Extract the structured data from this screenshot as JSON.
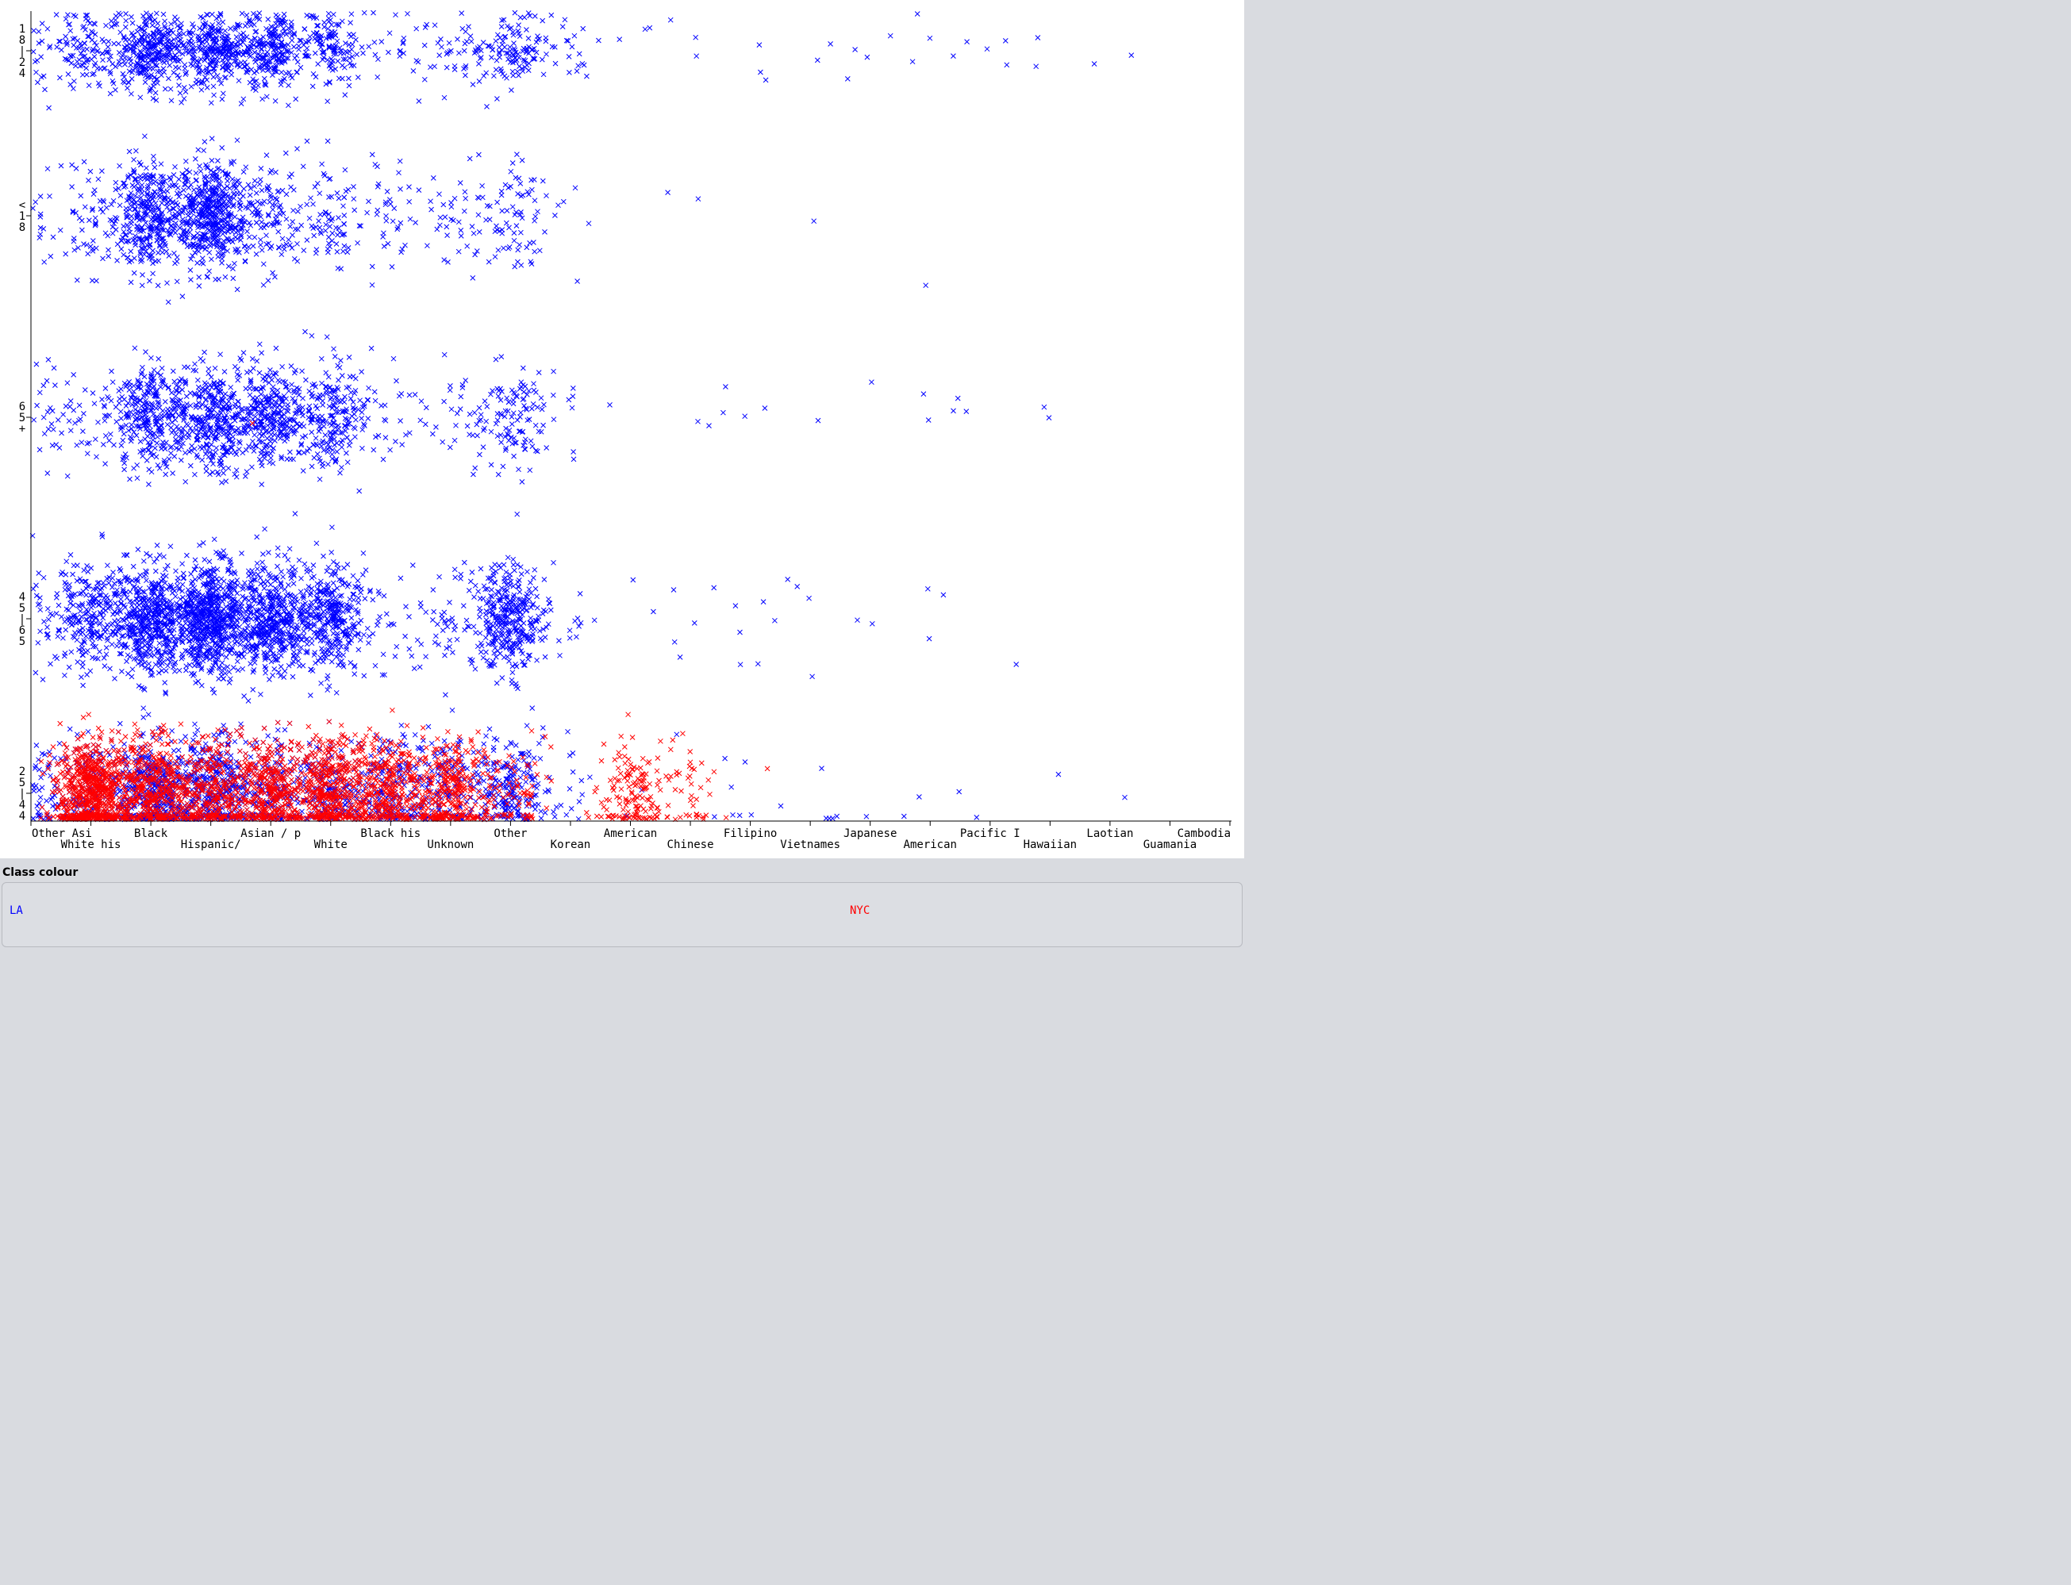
{
  "chart_data": {
    "type": "scatter",
    "x_categories": [
      "Other Asi",
      "White his",
      "Black",
      "Hispanic/",
      "Asian / p",
      "White",
      "Black his",
      "Unknown",
      "Other",
      "Korean",
      "American",
      "Chinese",
      "Filipino",
      "Vietnames",
      "Japanese",
      "American",
      "Pacific I",
      "Hawaiian",
      "Laotian",
      "Guamania",
      "Cambodia"
    ],
    "y_categories": [
      {
        "key": "18-24",
        "label_lines": [
          "1",
          "8",
          "|",
          "2",
          "4"
        ]
      },
      {
        "key": "<18",
        "label_lines": [
          "<",
          "1",
          "8"
        ]
      },
      {
        "key": "65+",
        "label_lines": [
          "6",
          "5",
          "+"
        ]
      },
      {
        "key": "45-65",
        "label_lines": [
          "4",
          "5",
          "|",
          "6",
          "5"
        ]
      },
      {
        "key": "25-44",
        "label_lines": [
          "2",
          "5",
          "|",
          "4",
          "4"
        ]
      }
    ],
    "series": [
      {
        "name": "LA",
        "color": "#0000ff",
        "counts": [
          [
            40,
            120,
            300,
            300,
            250,
            140,
            20,
            40,
            120,
            20,
            3,
            3,
            3,
            2,
            4,
            5,
            3,
            2,
            2,
            0,
            0
          ],
          [
            30,
            60,
            350,
            500,
            120,
            80,
            40,
            30,
            80,
            5,
            0,
            2,
            0,
            1,
            0,
            1,
            0,
            0,
            0,
            0,
            0
          ],
          [
            40,
            40,
            300,
            350,
            300,
            220,
            25,
            20,
            120,
            10,
            0,
            2,
            4,
            1,
            1,
            4,
            1,
            2,
            0,
            0,
            0
          ],
          [
            60,
            250,
            500,
            700,
            450,
            350,
            30,
            50,
            350,
            10,
            2,
            5,
            5,
            5,
            2,
            3,
            1,
            0,
            0,
            0,
            1
          ],
          [
            100,
            350,
            500,
            500,
            350,
            300,
            200,
            150,
            200,
            15,
            2,
            3,
            6,
            4,
            2,
            3,
            1,
            1,
            1,
            0,
            0
          ]
        ]
      },
      {
        "name": "NYC",
        "color": "#ff0000",
        "counts": [
          [
            0,
            0,
            0,
            0,
            0,
            0,
            0,
            0,
            0,
            0,
            0,
            0,
            0,
            0,
            0,
            0,
            0,
            0,
            0,
            0,
            0
          ],
          [
            0,
            0,
            0,
            0,
            0,
            0,
            0,
            0,
            0,
            0,
            0,
            0,
            0,
            0,
            0,
            0,
            0,
            0,
            0,
            0,
            0
          ],
          [
            0,
            0,
            0,
            0,
            1,
            0,
            0,
            0,
            0,
            0,
            0,
            0,
            0,
            0,
            0,
            0,
            0,
            0,
            0,
            0,
            0
          ],
          [
            0,
            0,
            0,
            0,
            0,
            0,
            0,
            0,
            0,
            0,
            0,
            0,
            0,
            0,
            0,
            0,
            0,
            0,
            0,
            0,
            0
          ],
          [
            0,
            700,
            400,
            300,
            350,
            450,
            300,
            300,
            80,
            0,
            150,
            40,
            0,
            0,
            0,
            0,
            0,
            0,
            0,
            0,
            0
          ]
        ]
      }
    ],
    "jitter": true,
    "marker": "x",
    "legend_title": "Class colour",
    "legend": [
      "LA",
      "NYC"
    ]
  }
}
